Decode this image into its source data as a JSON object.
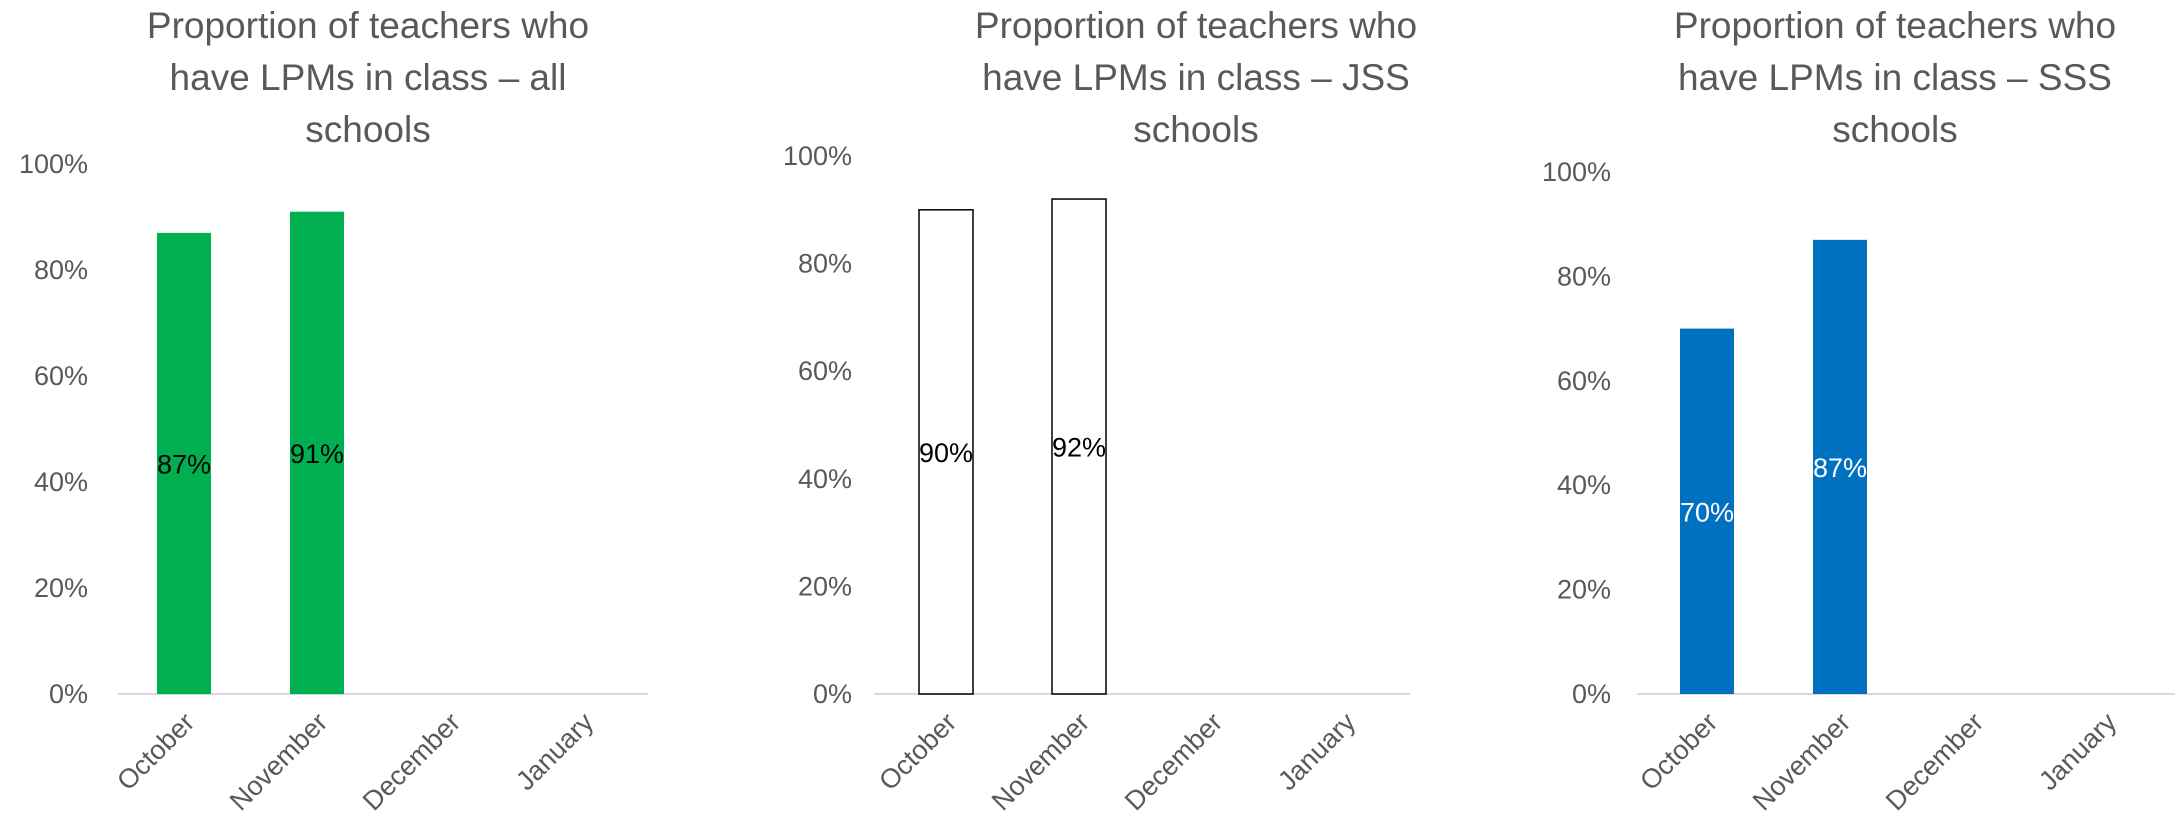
{
  "chart_data": [
    {
      "type": "bar",
      "title": [
        "Proportion of teachers who",
        "have LPMs in class – all",
        "schools"
      ],
      "categories": [
        "October",
        "November",
        "December",
        "January"
      ],
      "values": [
        87,
        91,
        null,
        null
      ],
      "data_labels": [
        "87%",
        "91%",
        "",
        ""
      ],
      "ylim": [
        0,
        100
      ],
      "yticks": [
        "0%",
        "20%",
        "40%",
        "60%",
        "80%",
        "100%"
      ],
      "bar_color": "#00B050",
      "bar_stroke": "none",
      "label_color": "#000000",
      "grid": false
    },
    {
      "type": "bar",
      "title": [
        "Proportion of teachers who",
        "have LPMs in class – JSS",
        "schools"
      ],
      "categories": [
        "October",
        "November",
        "December",
        "January"
      ],
      "values": [
        90,
        92,
        null,
        null
      ],
      "data_labels": [
        "90%",
        "92%",
        "",
        ""
      ],
      "ylim": [
        0,
        100
      ],
      "yticks": [
        "0%",
        "20%",
        "40%",
        "60%",
        "80%",
        "100%"
      ],
      "bar_color": "#FFFFFF",
      "bar_stroke": "#000000",
      "label_color": "#000000",
      "grid": false
    },
    {
      "type": "bar",
      "title": [
        "Proportion of teachers who",
        "have LPMs in class – SSS",
        "schools"
      ],
      "categories": [
        "October",
        "November",
        "December",
        "January"
      ],
      "values": [
        70,
        87,
        null,
        null
      ],
      "data_labels": [
        "70%",
        "87%",
        "",
        ""
      ],
      "ylim": [
        0,
        100
      ],
      "yticks": [
        "0%",
        "20%",
        "40%",
        "60%",
        "80%",
        "100%"
      ],
      "bar_color": "#0070C0",
      "bar_stroke": "none",
      "label_color": "#FFFFFF",
      "grid": false
    }
  ]
}
